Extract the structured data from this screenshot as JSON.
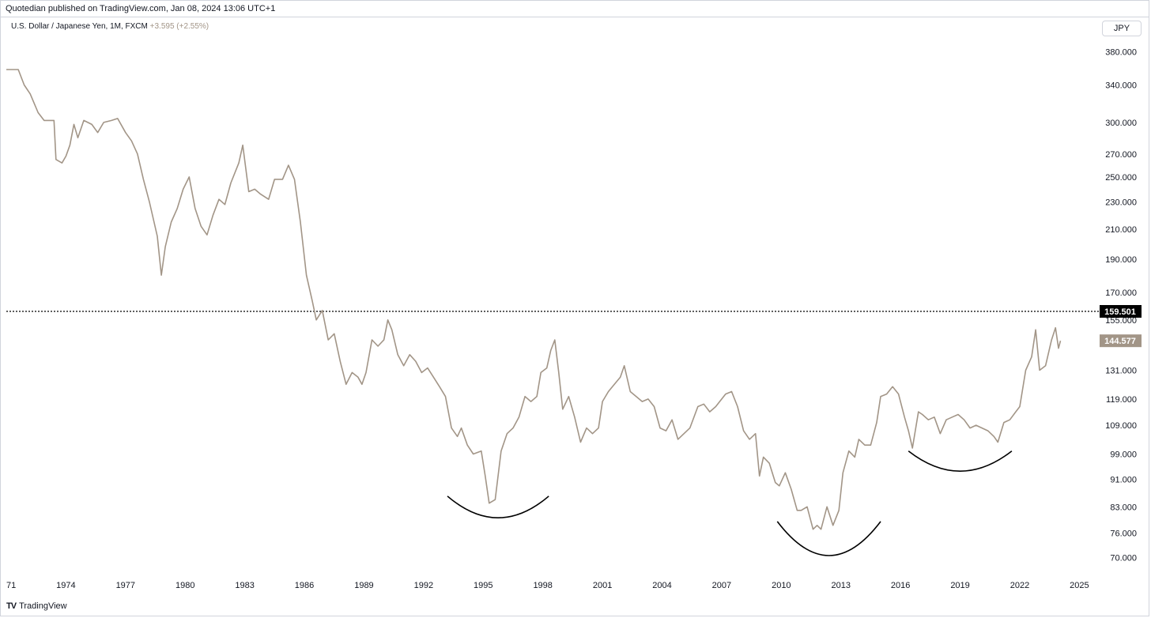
{
  "header": {
    "published_by": "Quotedian published on TradingView.com, Jan 08, 2024 13:06 UTC+1"
  },
  "symbol": {
    "name": "U.S. Dollar / Japanese Yen, 1M, FXCM",
    "change": "+3.595 (+2.55%)"
  },
  "currency_button": "JPY",
  "footer": {
    "brand": "TradingView"
  },
  "colors": {
    "line": "#a29587",
    "last_price_bg": "#a29587",
    "reference_bg": "#000000",
    "arcs": "#000000"
  },
  "chart_data": {
    "type": "line",
    "series": [
      {
        "points": [
          [
            1971.0,
            358
          ],
          [
            1971.6,
            358
          ],
          [
            1971.9,
            340
          ],
          [
            1972.2,
            330
          ],
          [
            1972.6,
            310
          ],
          [
            1972.9,
            302
          ],
          [
            1973.2,
            302
          ],
          [
            1973.4,
            302
          ],
          [
            1973.5,
            265
          ],
          [
            1973.8,
            262
          ],
          [
            1974.0,
            268
          ],
          [
            1974.2,
            278
          ],
          [
            1974.4,
            298
          ],
          [
            1974.6,
            285
          ],
          [
            1974.9,
            302
          ],
          [
            1975.3,
            298
          ],
          [
            1975.6,
            290
          ],
          [
            1975.9,
            300
          ],
          [
            1976.3,
            302
          ],
          [
            1976.6,
            304
          ],
          [
            1977.0,
            290
          ],
          [
            1977.3,
            282
          ],
          [
            1977.6,
            270
          ],
          [
            1977.9,
            248
          ],
          [
            1978.2,
            230
          ],
          [
            1978.6,
            205
          ],
          [
            1978.8,
            180
          ],
          [
            1979.0,
            198
          ],
          [
            1979.3,
            215
          ],
          [
            1979.6,
            225
          ],
          [
            1979.9,
            240
          ],
          [
            1980.2,
            250
          ],
          [
            1980.5,
            225
          ],
          [
            1980.8,
            212
          ],
          [
            1981.1,
            206
          ],
          [
            1981.4,
            220
          ],
          [
            1981.7,
            232
          ],
          [
            1982.0,
            228
          ],
          [
            1982.3,
            245
          ],
          [
            1982.7,
            262
          ],
          [
            1982.9,
            278
          ],
          [
            1983.2,
            238
          ],
          [
            1983.5,
            240
          ],
          [
            1983.8,
            236
          ],
          [
            1984.2,
            232
          ],
          [
            1984.5,
            248
          ],
          [
            1984.9,
            248
          ],
          [
            1985.2,
            260
          ],
          [
            1985.5,
            248
          ],
          [
            1985.8,
            215
          ],
          [
            1986.1,
            180
          ],
          [
            1986.4,
            165
          ],
          [
            1986.6,
            155
          ],
          [
            1986.9,
            160
          ],
          [
            1987.2,
            145
          ],
          [
            1987.5,
            148
          ],
          [
            1987.8,
            135
          ],
          [
            1988.1,
            125
          ],
          [
            1988.4,
            130
          ],
          [
            1988.7,
            128
          ],
          [
            1988.9,
            125
          ],
          [
            1989.1,
            130
          ],
          [
            1989.4,
            145
          ],
          [
            1989.7,
            142
          ],
          [
            1990.0,
            145
          ],
          [
            1990.2,
            155
          ],
          [
            1990.4,
            150
          ],
          [
            1990.7,
            138
          ],
          [
            1991.0,
            133
          ],
          [
            1991.3,
            138
          ],
          [
            1991.6,
            135
          ],
          [
            1991.9,
            130
          ],
          [
            1992.2,
            132
          ],
          [
            1992.5,
            128
          ],
          [
            1992.8,
            124
          ],
          [
            1993.1,
            120
          ],
          [
            1993.4,
            108
          ],
          [
            1993.7,
            105
          ],
          [
            1993.9,
            108
          ],
          [
            1994.2,
            102
          ],
          [
            1994.5,
            99
          ],
          [
            1994.9,
            100
          ],
          [
            1995.1,
            92
          ],
          [
            1995.3,
            84
          ],
          [
            1995.6,
            85
          ],
          [
            1995.9,
            100
          ],
          [
            1996.2,
            106
          ],
          [
            1996.5,
            108
          ],
          [
            1996.8,
            112
          ],
          [
            1997.1,
            120
          ],
          [
            1997.4,
            118
          ],
          [
            1997.7,
            120
          ],
          [
            1997.9,
            130
          ],
          [
            1998.2,
            132
          ],
          [
            1998.4,
            140
          ],
          [
            1998.6,
            145
          ],
          [
            1998.8,
            130
          ],
          [
            1999.0,
            115
          ],
          [
            1999.3,
            120
          ],
          [
            1999.6,
            112
          ],
          [
            1999.9,
            103
          ],
          [
            2000.2,
            108
          ],
          [
            2000.5,
            106
          ],
          [
            2000.8,
            108
          ],
          [
            2001.0,
            118
          ],
          [
            2001.3,
            122
          ],
          [
            2001.6,
            125
          ],
          [
            2001.9,
            128
          ],
          [
            2002.1,
            133
          ],
          [
            2002.4,
            122
          ],
          [
            2002.7,
            120
          ],
          [
            2003.0,
            118
          ],
          [
            2003.3,
            119
          ],
          [
            2003.6,
            116
          ],
          [
            2003.9,
            108
          ],
          [
            2004.2,
            107
          ],
          [
            2004.5,
            111
          ],
          [
            2004.8,
            104
          ],
          [
            2005.1,
            106
          ],
          [
            2005.4,
            108
          ],
          [
            2005.8,
            116
          ],
          [
            2006.1,
            117
          ],
          [
            2006.4,
            114
          ],
          [
            2006.7,
            116
          ],
          [
            2006.9,
            118
          ],
          [
            2007.2,
            121
          ],
          [
            2007.5,
            122
          ],
          [
            2007.8,
            116
          ],
          [
            2008.1,
            107
          ],
          [
            2008.4,
            104
          ],
          [
            2008.7,
            106
          ],
          [
            2008.9,
            92
          ],
          [
            2009.1,
            98
          ],
          [
            2009.4,
            96
          ],
          [
            2009.7,
            90
          ],
          [
            2009.9,
            89
          ],
          [
            2010.2,
            93
          ],
          [
            2010.5,
            88
          ],
          [
            2010.8,
            82
          ],
          [
            2011.0,
            82
          ],
          [
            2011.3,
            83
          ],
          [
            2011.6,
            77
          ],
          [
            2011.8,
            78
          ],
          [
            2012.0,
            77
          ],
          [
            2012.3,
            83
          ],
          [
            2012.6,
            78
          ],
          [
            2012.9,
            82
          ],
          [
            2013.1,
            93
          ],
          [
            2013.4,
            100
          ],
          [
            2013.7,
            98
          ],
          [
            2013.9,
            104
          ],
          [
            2014.2,
            102
          ],
          [
            2014.5,
            102
          ],
          [
            2014.8,
            110
          ],
          [
            2015.0,
            120
          ],
          [
            2015.3,
            121
          ],
          [
            2015.6,
            124
          ],
          [
            2015.9,
            121
          ],
          [
            2016.2,
            112
          ],
          [
            2016.4,
            107
          ],
          [
            2016.6,
            101
          ],
          [
            2016.9,
            114
          ],
          [
            2017.1,
            113
          ],
          [
            2017.4,
            111
          ],
          [
            2017.7,
            112
          ],
          [
            2018.0,
            106
          ],
          [
            2018.3,
            111
          ],
          [
            2018.6,
            112
          ],
          [
            2018.9,
            113
          ],
          [
            2019.2,
            111
          ],
          [
            2019.5,
            108
          ],
          [
            2019.8,
            109
          ],
          [
            2020.1,
            108
          ],
          [
            2020.4,
            107
          ],
          [
            2020.7,
            105
          ],
          [
            2020.9,
            103
          ],
          [
            2021.2,
            110
          ],
          [
            2021.5,
            111
          ],
          [
            2021.8,
            114
          ],
          [
            2022.0,
            116
          ],
          [
            2022.3,
            131
          ],
          [
            2022.6,
            137
          ],
          [
            2022.8,
            150
          ],
          [
            2023.0,
            131
          ],
          [
            2023.3,
            133
          ],
          [
            2023.6,
            145
          ],
          [
            2023.8,
            151
          ],
          [
            2023.95,
            141
          ],
          [
            2024.05,
            144.577
          ]
        ]
      }
    ],
    "y_ticks": [
      "380.000",
      "340.000",
      "300.000",
      "270.000",
      "250.000",
      "230.000",
      "210.000",
      "190.000",
      "170.000",
      "155.000",
      "131.000",
      "119.000",
      "109.000",
      "99.000",
      "91.000",
      "83.000",
      "76.000",
      "70.000"
    ],
    "y_tick_values": [
      380,
      340,
      300,
      270,
      250,
      230,
      210,
      190,
      170,
      155,
      131,
      119,
      109,
      99,
      91,
      83,
      76,
      70
    ],
    "x_ticks": [
      "71",
      "1974",
      "1977",
      "1980",
      "1983",
      "1986",
      "1989",
      "1992",
      "1995",
      "1998",
      "2001",
      "2004",
      "2007",
      "2010",
      "2013",
      "2016",
      "2019",
      "2022",
      "2025"
    ],
    "x_tick_values": [
      1971,
      1974,
      1977,
      1980,
      1983,
      1986,
      1989,
      1992,
      1995,
      1998,
      2001,
      2004,
      2007,
      2010,
      2013,
      2016,
      2019,
      2022,
      2025
    ],
    "reference_line": {
      "value": 159.501,
      "label": "159.501",
      "style": "dotted"
    },
    "last_value": {
      "value": 144.577,
      "label": "144.577"
    },
    "annotations": [
      {
        "type": "arc",
        "x_from": 1993.2,
        "x_to": 1998.3,
        "y_from": 86,
        "y_bottom": 80
      },
      {
        "type": "arc",
        "x_from": 2009.8,
        "x_to": 2015.0,
        "y_from": 79,
        "y_bottom": 70.5
      },
      {
        "type": "arc",
        "x_from": 2016.4,
        "x_to": 2021.6,
        "y_from": 100,
        "y_bottom": 93.5
      }
    ],
    "y_scale": "log",
    "grid": false,
    "xlim": [
      1971.0,
      2025.9
    ],
    "ylim": [
      66,
      400
    ]
  }
}
